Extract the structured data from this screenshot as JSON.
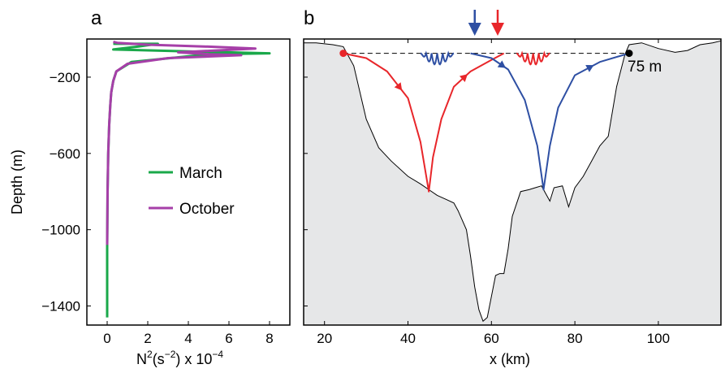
{
  "colors": {
    "march": "#1aa84a",
    "october": "#a63fa8",
    "red_path": "#e8262a",
    "blue_path": "#2e4fa3",
    "terrain": "#e6e7e8"
  },
  "chart_data": [
    {
      "panel": "a",
      "type": "line",
      "title": "",
      "panel_label": "a",
      "xlabel_base": "N",
      "xlabel_sup": "2",
      "xlabel_unit": "(s",
      "xlabel_unit_sup": "−2",
      "xlabel_rest": ") x 10",
      "xlabel_rest_sup": "−4",
      "ylabel": "Depth (m)",
      "xlim": [
        -1,
        9
      ],
      "ylim": [
        -1500,
        0
      ],
      "xticks": [
        0,
        2,
        4,
        6,
        8
      ],
      "xtick_labels": [
        "0",
        "2",
        "4",
        "6",
        "8"
      ],
      "yticks": [
        -200,
        -600,
        -1000,
        -1400
      ],
      "ytick_labels": [
        "−200",
        "−600",
        "−1000",
        "−1400"
      ],
      "legend_position": "center-right",
      "series": [
        {
          "name": "March",
          "color_key": "march",
          "x": [
            0,
            0,
            0.02,
            0.05,
            0.1,
            0.15,
            0.2,
            0.3,
            0.45,
            1.2,
            5.0,
            8.0,
            4.0,
            0.3,
            1.5,
            2.5,
            0.8,
            0.3
          ],
          "y": [
            -1460,
            -1100,
            -800,
            -600,
            -450,
            -350,
            -280,
            -220,
            -170,
            -120,
            -80,
            -75,
            -65,
            -55,
            -40,
            -25,
            -25,
            -25
          ]
        },
        {
          "name": "October",
          "color_key": "october",
          "x": [
            0,
            0.02,
            0.05,
            0.1,
            0.15,
            0.2,
            0.3,
            0.45,
            1.0,
            3.0,
            6.6,
            5.0,
            3.5,
            7.3,
            5.0,
            2.0,
            0.5,
            0.3
          ],
          "y": [
            -1080,
            -800,
            -600,
            -450,
            -350,
            -280,
            -220,
            -170,
            -130,
            -100,
            -85,
            -80,
            -70,
            -50,
            -40,
            -30,
            -20,
            -15
          ]
        }
      ]
    },
    {
      "panel": "b",
      "type": "area",
      "title": "",
      "panel_label": "b",
      "xlabel": "x (km)",
      "ylabel": "",
      "xlim": [
        15,
        115
      ],
      "ylim": [
        -1500,
        0
      ],
      "xticks": [
        20,
        40,
        60,
        80,
        100
      ],
      "xtick_labels": [
        "20",
        "40",
        "60",
        "80",
        "100"
      ],
      "annotation": "75 m",
      "bathymetry": {
        "x": [
          15,
          18,
          22,
          24.5,
          27,
          30,
          33,
          36,
          40,
          43,
          45,
          47,
          49,
          51,
          52,
          54,
          55,
          56,
          57,
          58,
          59,
          60,
          61,
          62,
          63,
          64,
          65,
          67,
          69,
          70.5,
          72,
          73,
          74,
          75,
          77,
          78.5,
          80,
          82,
          84,
          86,
          88,
          90,
          92,
          93,
          96,
          100,
          104,
          107,
          110,
          113,
          115
        ],
        "y": [
          -20,
          -20,
          -30,
          -40,
          -140,
          -420,
          -570,
          -640,
          -720,
          -760,
          -790,
          -820,
          -840,
          -860,
          -900,
          -1000,
          -1140,
          -1300,
          -1420,
          -1480,
          -1460,
          -1350,
          -1240,
          -1230,
          -1230,
          -1100,
          -930,
          -800,
          -790,
          -780,
          -770,
          -810,
          -850,
          -780,
          -770,
          -880,
          -780,
          -720,
          -640,
          -560,
          -510,
          -250,
          -80,
          -30,
          -20,
          -50,
          -70,
          -60,
          -30,
          -20,
          -10
        ]
      },
      "surface_line": {
        "x": [
          24.5,
          93
        ],
        "y": [
          -75,
          -75
        ]
      },
      "markers": [
        {
          "name": "red-dot",
          "x": 24.5,
          "y": -75,
          "color_key": "red_path"
        },
        {
          "name": "black-dot",
          "x": 93,
          "y": -75,
          "color_key": "black"
        }
      ],
      "arrows_top": [
        {
          "x": 56,
          "color_key": "blue_path"
        },
        {
          "x": 61.5,
          "color_key": "red_path"
        }
      ],
      "ray_paths": [
        {
          "color_key": "red_path",
          "x": [
            24.5,
            30,
            35,
            40,
            43,
            45,
            46,
            48,
            51,
            55,
            60,
            63
          ],
          "y": [
            -75,
            -100,
            -170,
            -310,
            -540,
            -800,
            -620,
            -420,
            -250,
            -170,
            -110,
            -75
          ],
          "arrows_at": [
            3,
            9
          ]
        },
        {
          "color_key": "blue_path",
          "x": [
            55,
            60,
            64,
            68,
            71,
            72.5,
            74,
            76,
            80,
            86,
            93
          ],
          "y": [
            -75,
            -100,
            -160,
            -320,
            -560,
            -790,
            -560,
            -360,
            -190,
            -120,
            -75
          ],
          "arrows_at": [
            2,
            9
          ]
        }
      ],
      "wave_packets": [
        {
          "color_key": "blue_path",
          "x_start": 43,
          "x_end": 51,
          "amplitude": 60
        },
        {
          "color_key": "red_path",
          "x_start": 66,
          "x_end": 74,
          "amplitude": 60
        }
      ]
    }
  ]
}
